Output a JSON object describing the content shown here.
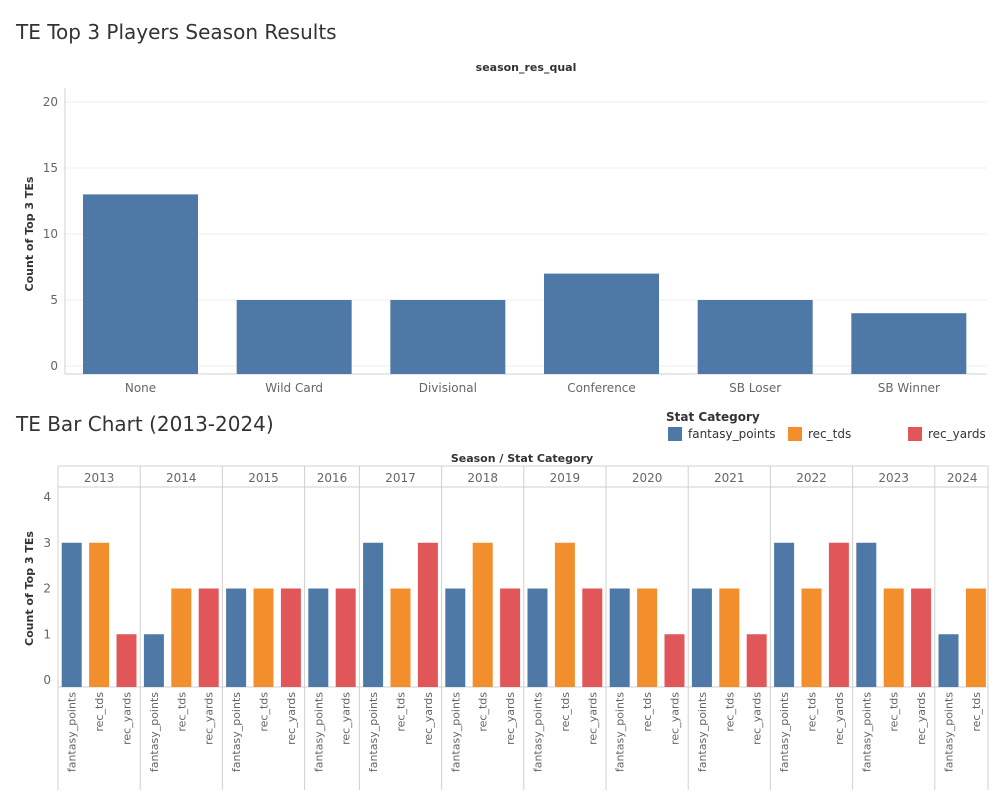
{
  "page": {
    "title1": "TE Top 3 Players Season Results",
    "title2": "TE Bar Chart (2013-2024)"
  },
  "legend": {
    "title": "Stat Category",
    "items": [
      {
        "label": "fantasy_points",
        "color": "#4e79a7"
      },
      {
        "label": "rec_tds",
        "color": "#f28e2b"
      },
      {
        "label": "rec_yards",
        "color": "#e15759"
      }
    ]
  },
  "chart_data": [
    {
      "type": "bar",
      "header": "season_res_qual",
      "ylabel": "Count of Top 3 TEs",
      "categories": [
        "None",
        "Wild Card",
        "Divisional",
        "Conference",
        "SB Loser",
        "SB Winner"
      ],
      "values": [
        13,
        5,
        5,
        7,
        5,
        4
      ],
      "ylim": [
        0,
        20
      ],
      "yticks": [
        0,
        5,
        10,
        15,
        20
      ],
      "color": "#4e79a7"
    },
    {
      "type": "bar",
      "header": "Season / Stat Category",
      "ylabel": "Count of Top 3 TEs",
      "ylim": [
        0,
        4
      ],
      "yticks": [
        0,
        1,
        2,
        3,
        4
      ],
      "groups": [
        {
          "season": "2013",
          "bars": [
            {
              "category": "fantasy_points",
              "value": 3
            },
            {
              "category": "rec_tds",
              "value": 3
            },
            {
              "category": "rec_yards",
              "value": 1
            }
          ]
        },
        {
          "season": "2014",
          "bars": [
            {
              "category": "fantasy_points",
              "value": 1
            },
            {
              "category": "rec_tds",
              "value": 2
            },
            {
              "category": "rec_yards",
              "value": 2
            }
          ]
        },
        {
          "season": "2015",
          "bars": [
            {
              "category": "fantasy_points",
              "value": 2
            },
            {
              "category": "rec_tds",
              "value": 2
            },
            {
              "category": "rec_yards",
              "value": 2
            }
          ]
        },
        {
          "season": "2016",
          "bars": [
            {
              "category": "fantasy_points",
              "value": 2
            },
            {
              "category": "rec_yards",
              "value": 2
            }
          ]
        },
        {
          "season": "2017",
          "bars": [
            {
              "category": "fantasy_points",
              "value": 3
            },
            {
              "category": "rec_tds",
              "value": 2
            },
            {
              "category": "rec_yards",
              "value": 3
            }
          ]
        },
        {
          "season": "2018",
          "bars": [
            {
              "category": "fantasy_points",
              "value": 2
            },
            {
              "category": "rec_tds",
              "value": 3
            },
            {
              "category": "rec_yards",
              "value": 2
            }
          ]
        },
        {
          "season": "2019",
          "bars": [
            {
              "category": "fantasy_points",
              "value": 2
            },
            {
              "category": "rec_tds",
              "value": 3
            },
            {
              "category": "rec_yards",
              "value": 2
            }
          ]
        },
        {
          "season": "2020",
          "bars": [
            {
              "category": "fantasy_points",
              "value": 2
            },
            {
              "category": "rec_tds",
              "value": 2
            },
            {
              "category": "rec_yards",
              "value": 1
            }
          ]
        },
        {
          "season": "2021",
          "bars": [
            {
              "category": "fantasy_points",
              "value": 2
            },
            {
              "category": "rec_tds",
              "value": 2
            },
            {
              "category": "rec_yards",
              "value": 1
            }
          ]
        },
        {
          "season": "2022",
          "bars": [
            {
              "category": "fantasy_points",
              "value": 3
            },
            {
              "category": "rec_tds",
              "value": 2
            },
            {
              "category": "rec_yards",
              "value": 3
            }
          ]
        },
        {
          "season": "2023",
          "bars": [
            {
              "category": "fantasy_points",
              "value": 3
            },
            {
              "category": "rec_tds",
              "value": 2
            },
            {
              "category": "rec_yards",
              "value": 2
            }
          ]
        },
        {
          "season": "2024",
          "bars": [
            {
              "category": "fantasy_points",
              "value": 1
            },
            {
              "category": "rec_tds",
              "value": 2
            }
          ]
        }
      ]
    }
  ]
}
